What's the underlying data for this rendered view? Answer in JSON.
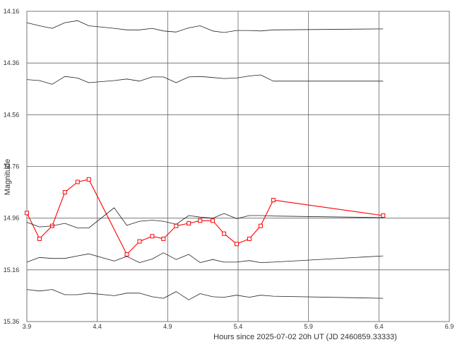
{
  "chart_data": {
    "type": "line",
    "title": "",
    "xlabel": "Hours since 2025-07-02 20h UT (JD 2460859.33333)",
    "ylabel": "Magnitude",
    "xlim": [
      3.9,
      6.9
    ],
    "ylim": [
      14.16,
      15.36
    ],
    "y_inverted": true,
    "grid": true,
    "x_ticks": [
      "3.9",
      "4.4",
      "4.9",
      "5.4",
      "5.9",
      "6.4",
      "6.9"
    ],
    "y_ticks": [
      "14.16",
      "14.36",
      "14.56",
      "14.76",
      "14.96",
      "15.16",
      "15.36"
    ],
    "colors": {
      "target": "#ff0000",
      "comparison": "#222222",
      "grid": "#666666"
    },
    "series": [
      {
        "role": "target",
        "x": [
          3.9,
          3.99,
          4.08,
          4.17,
          4.26,
          4.34,
          4.61,
          4.7,
          4.79,
          4.87,
          4.96,
          5.05,
          5.13,
          5.22,
          5.3,
          5.39,
          5.48,
          5.56,
          5.65,
          6.43
        ],
        "y": [
          14.94,
          15.04,
          14.99,
          14.86,
          14.82,
          14.81,
          15.1,
          15.05,
          15.03,
          15.04,
          14.99,
          14.98,
          14.97,
          14.97,
          15.02,
          15.06,
          15.04,
          14.99,
          14.89,
          14.95
        ]
      },
      {
        "role": "comparison",
        "x": [
          3.9,
          3.99,
          4.08,
          4.17,
          4.26,
          4.34,
          4.52,
          4.61,
          4.7,
          4.79,
          4.87,
          4.96,
          5.05,
          5.13,
          5.22,
          5.3,
          5.39,
          5.48,
          5.56,
          5.65,
          6.43
        ],
        "y": [
          14.204,
          14.216,
          14.226,
          14.204,
          14.196,
          14.216,
          14.226,
          14.232,
          14.232,
          14.226,
          14.236,
          14.24,
          14.224,
          14.216,
          14.236,
          14.242,
          14.234,
          14.234,
          14.236,
          14.232,
          14.228
        ]
      },
      {
        "role": "comparison",
        "x": [
          3.9,
          3.99,
          4.08,
          4.17,
          4.26,
          4.34,
          4.52,
          4.61,
          4.7,
          4.79,
          4.87,
          4.96,
          5.05,
          5.13,
          5.22,
          5.3,
          5.39,
          5.48,
          5.56,
          5.65,
          6.43
        ],
        "y": [
          14.424,
          14.428,
          14.442,
          14.412,
          14.418,
          14.436,
          14.428,
          14.422,
          14.43,
          14.414,
          14.414,
          14.436,
          14.414,
          14.412,
          14.416,
          14.42,
          14.418,
          14.41,
          14.406,
          14.43,
          14.43
        ]
      },
      {
        "role": "comparison",
        "x": [
          3.9,
          3.99,
          4.08,
          4.17,
          4.26,
          4.34,
          4.52,
          4.61,
          4.7,
          4.79,
          4.87,
          4.96,
          5.05,
          5.13,
          5.22,
          5.3,
          5.39,
          5.48,
          5.56,
          5.65,
          6.43
        ],
        "y": [
          14.976,
          14.994,
          14.99,
          14.98,
          14.998,
          14.998,
          14.92,
          14.988,
          14.972,
          14.968,
          14.972,
          14.984,
          14.95,
          14.956,
          14.96,
          14.942,
          14.962,
          14.95,
          14.95,
          14.952,
          14.958
        ]
      },
      {
        "role": "comparison",
        "x": [
          3.9,
          3.99,
          4.08,
          4.17,
          4.26,
          4.34,
          4.52,
          4.61,
          4.7,
          4.79,
          4.87,
          4.96,
          5.05,
          5.13,
          5.22,
          5.3,
          5.39,
          5.48,
          5.56,
          5.65,
          6.43
        ],
        "y": [
          15.13,
          15.112,
          15.116,
          15.116,
          15.106,
          15.098,
          15.126,
          15.108,
          15.132,
          15.118,
          15.094,
          15.12,
          15.1,
          15.132,
          15.12,
          15.13,
          15.13,
          15.124,
          15.132,
          15.13,
          15.106
        ]
      },
      {
        "role": "comparison",
        "x": [
          3.9,
          3.99,
          4.08,
          4.17,
          4.26,
          4.34,
          4.52,
          4.61,
          4.7,
          4.79,
          4.87,
          4.96,
          5.05,
          5.13,
          5.22,
          5.3,
          5.39,
          5.48,
          5.56,
          5.65,
          6.43
        ],
        "y": [
          15.236,
          15.242,
          15.236,
          15.256,
          15.256,
          15.25,
          15.26,
          15.25,
          15.25,
          15.264,
          15.27,
          15.244,
          15.276,
          15.252,
          15.264,
          15.266,
          15.258,
          15.266,
          15.258,
          15.262,
          15.27
        ]
      }
    ]
  }
}
